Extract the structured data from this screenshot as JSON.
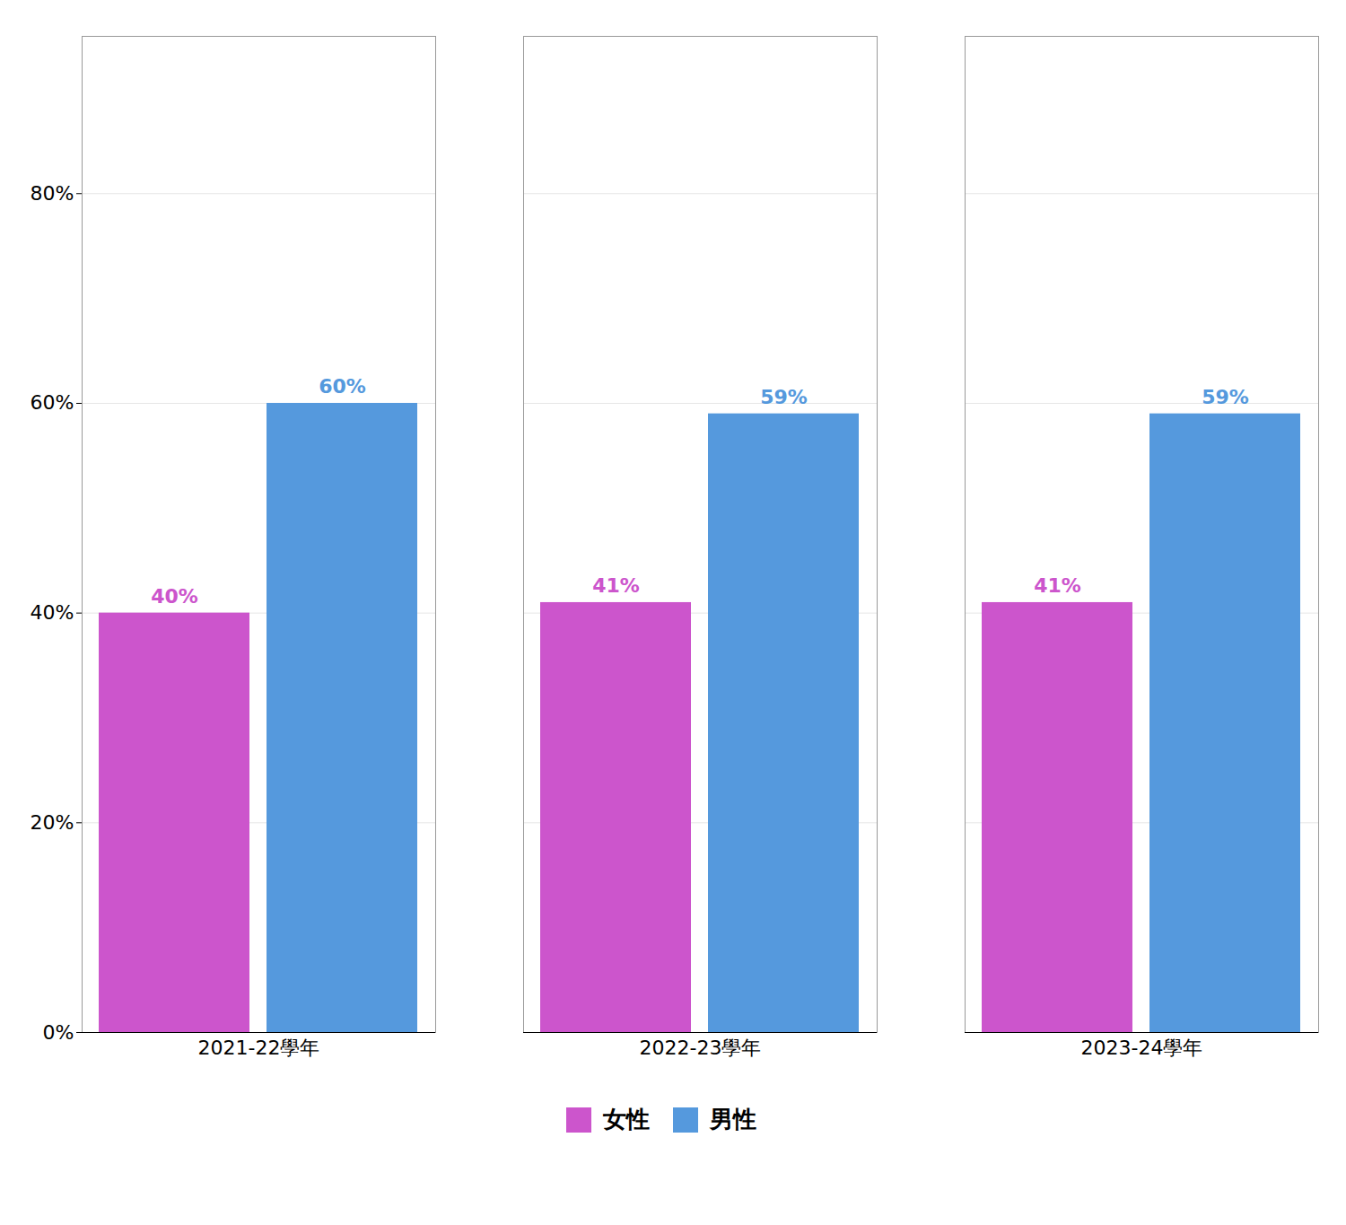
{
  "chart_data": {
    "type": "bar",
    "categories": [
      "2021-22學年",
      "2022-23學年",
      "2023-24學年"
    ],
    "series": [
      {
        "name": "女性",
        "color": "#cc55cc",
        "values": [
          40,
          41,
          41
        ],
        "value_labels": [
          "40%",
          "41%",
          "41%"
        ]
      },
      {
        "name": "男性",
        "color": "#5599dd",
        "values": [
          60,
          59,
          59
        ],
        "value_labels": [
          "60%",
          "59%",
          "59%"
        ]
      }
    ],
    "ylim": [
      0,
      95
    ],
    "yticks": [
      {
        "value": 0,
        "label": "0%"
      },
      {
        "value": 20,
        "label": "20%"
      },
      {
        "value": 40,
        "label": "40%"
      },
      {
        "value": 60,
        "label": "60%"
      },
      {
        "value": 80,
        "label": "80%"
      }
    ],
    "grid": true,
    "legend": "bottom",
    "data_labels": true
  }
}
